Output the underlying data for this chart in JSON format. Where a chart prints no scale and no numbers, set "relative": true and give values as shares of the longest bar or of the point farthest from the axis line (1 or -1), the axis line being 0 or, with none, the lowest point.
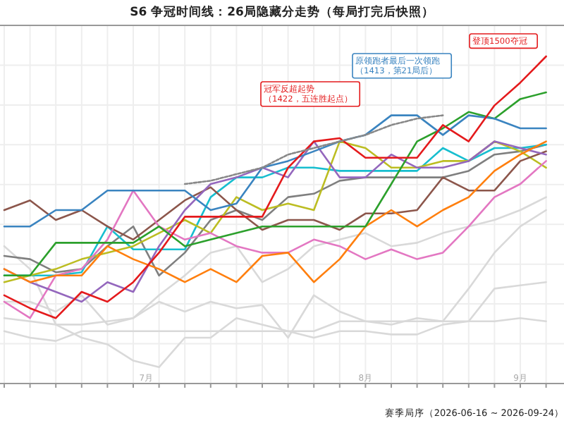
{
  "chart_data": {
    "type": "line",
    "relative": true,
    "title": "S6 争冠时间线：26局隐藏分走势（每局打完后快照）",
    "xlabel": "赛季局序（2026-06-16 ~ 2026-09-24）",
    "grid": true,
    "marker": "none",
    "categories": [
      null,
      null,
      null,
      null,
      null,
      null,
      null,
      null,
      null,
      null,
      null,
      null,
      null,
      null,
      null,
      null,
      null,
      null,
      null,
      null,
      null,
      null
    ],
    "annotations": [
      "登顶1500夺冠",
      "冠军反超起势（1422，五连胜起点）",
      "原领跑者最后一次领跑（1413，第21局后）",
      "7月",
      "8月",
      "9月"
    ],
    "series": [
      {
        "color": "#d9d9d9",
        "values": [
          0.42,
          0.35,
          0.18,
          0.14,
          0.12,
          0.07,
          0.05,
          0.14,
          0.14,
          0.2,
          0.18,
          0.16,
          0.14,
          0.16,
          0.16,
          0.15,
          0.15,
          0.18,
          0.19,
          0.19,
          0.2,
          0.19
        ]
      },
      {
        "color": "#d9d9d9",
        "values": [
          0.25,
          0.25,
          0.22,
          0.27,
          0.18,
          0.2,
          0.25,
          0.22,
          0.25,
          0.23,
          0.24,
          0.14,
          0.27,
          0.22,
          0.19,
          0.18,
          0.2,
          0.19,
          0.29,
          0.4,
          0.48,
          0.53
        ]
      },
      {
        "color": "#d9d9d9",
        "values": [
          0.2,
          0.19,
          0.18,
          0.18,
          0.19,
          0.2,
          0.27,
          0.33,
          0.4,
          0.42,
          0.31,
          0.35,
          0.42,
          0.44,
          0.46,
          0.42,
          0.43,
          0.46,
          0.48,
          0.5,
          0.53,
          0.57
        ]
      },
      {
        "color": "#d9d9d9",
        "values": [
          0.16,
          0.14,
          0.13,
          0.16,
          0.16,
          0.16,
          0.16,
          0.16,
          0.16,
          0.16,
          0.16,
          0.16,
          0.16,
          0.19,
          0.19,
          0.19,
          0.19,
          0.19,
          0.19,
          0.29,
          0.3,
          0.31
        ]
      },
      {
        "color": "#7f7f7f",
        "values": [
          0.39,
          0.38,
          0.34,
          0.35,
          0.42,
          0.48,
          0.33,
          0.4,
          0.5,
          0.53,
          0.5,
          0.57,
          0.58,
          0.62,
          0.63,
          0.63,
          0.63,
          0.63,
          0.65,
          0.7,
          0.71,
          0.73
        ]
      },
      {
        "color": "#17becf",
        "values": [
          0.33,
          0.33,
          0.33,
          0.34,
          0.48,
          0.41,
          0.41,
          0.41,
          0.57,
          0.63,
          0.63,
          0.66,
          0.66,
          0.65,
          0.65,
          0.65,
          0.65,
          0.72,
          0.68,
          0.72,
          0.72,
          0.73
        ]
      },
      {
        "color": "#bcbd22",
        "values": [
          0.31,
          0.33,
          0.35,
          0.38,
          0.4,
          0.42,
          0.46,
          0.5,
          0.46,
          0.57,
          0.53,
          0.55,
          0.53,
          0.74,
          0.72,
          0.66,
          0.66,
          0.68,
          0.68,
          0.74,
          0.71,
          0.66
        ]
      },
      {
        "color": "#8c564b",
        "values": [
          0.53,
          0.56,
          0.5,
          0.53,
          0.48,
          0.44,
          0.5,
          0.56,
          0.6,
          0.53,
          0.47,
          0.5,
          0.5,
          0.47,
          0.52,
          0.52,
          0.53,
          0.63,
          0.59,
          0.59,
          0.68,
          0.71
        ]
      },
      {
        "color": "#e377c2",
        "values": [
          0.25,
          0.2,
          0.33,
          0.35,
          0.44,
          0.59,
          0.48,
          0.44,
          0.46,
          0.42,
          0.4,
          0.4,
          0.44,
          0.42,
          0.38,
          0.41,
          0.38,
          0.4,
          0.48,
          0.57,
          0.61,
          0.68
        ]
      },
      {
        "color": "#9467bd",
        "values": [
          0.35,
          0.31,
          0.28,
          0.25,
          0.31,
          0.28,
          0.42,
          0.53,
          0.61,
          0.63,
          0.66,
          0.63,
          0.74,
          0.63,
          0.63,
          0.7,
          0.66,
          0.66,
          0.68,
          0.74,
          0.72,
          0.7
        ]
      },
      {
        "color": "#ff7f0e",
        "values": [
          0.35,
          0.31,
          0.33,
          0.33,
          0.42,
          0.38,
          0.35,
          0.31,
          0.35,
          0.31,
          0.39,
          0.4,
          0.31,
          0.38,
          0.48,
          0.53,
          0.48,
          0.53,
          0.57,
          0.65,
          0.7,
          0.74
        ]
      },
      {
        "color": "#2ca02c",
        "values": [
          0.33,
          0.33,
          0.43,
          0.43,
          0.43,
          0.43,
          0.48,
          0.42,
          0.44,
          0.46,
          0.48,
          0.48,
          0.48,
          0.48,
          0.48,
          0.61,
          0.74,
          0.78,
          0.83,
          0.81,
          0.87,
          0.89
        ]
      },
      {
        "color": "#3a84c0",
        "values": [
          0.48,
          0.48,
          0.53,
          0.53,
          0.59,
          0.59,
          0.59,
          0.59,
          0.53,
          0.55,
          0.66,
          0.68,
          0.71,
          0.74,
          0.76,
          0.82,
          0.82,
          0.76,
          0.82,
          0.81,
          0.78,
          0.78
        ]
      },
      {
        "color": "#e41a1c",
        "values": [
          0.27,
          0.23,
          0.2,
          0.28,
          0.25,
          0.31,
          0.4,
          0.51,
          0.51,
          0.51,
          0.51,
          0.66,
          0.74,
          0.75,
          0.69,
          0.69,
          0.69,
          0.79,
          0.74,
          0.85,
          0.92,
          1.0
        ]
      },
      {
        "color": "#888888",
        "line_style": "dashed",
        "values": [
          null,
          null,
          null,
          null,
          null,
          null,
          null,
          0.61,
          0.62,
          0.64,
          0.66,
          0.7,
          0.72,
          0.74,
          0.76,
          0.79,
          0.81,
          0.82,
          null,
          null,
          null,
          null
        ]
      }
    ]
  }
}
